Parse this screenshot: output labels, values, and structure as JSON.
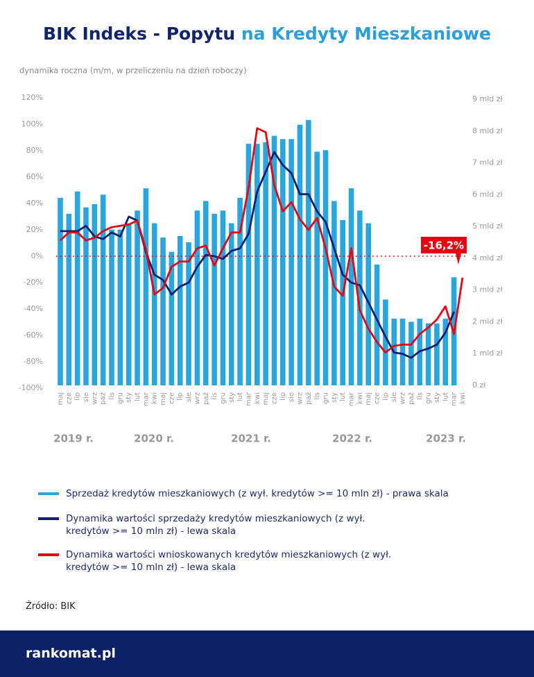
{
  "chart_data": {
    "type": "bar_line",
    "title": [
      "BIK Indeks - Popytu",
      "na Kredyty Mieszkaniowe"
    ],
    "title_colors": [
      "#12246b",
      "#2a9fd8"
    ],
    "subtitle": "dynamika roczna (m/m, w przeliczeniu na dzień roboczy)",
    "categories": [
      "maj",
      "cze",
      "lip",
      "sie",
      "wrz",
      "paź",
      "lis",
      "gru",
      "sty",
      "lut",
      "mar",
      "kwi",
      "maj",
      "cze",
      "lip",
      "sie",
      "wrz",
      "paź",
      "lis",
      "gru",
      "sty",
      "lut",
      "mar",
      "kwi",
      "maj",
      "cze",
      "lip",
      "sie",
      "wrz",
      "paź",
      "lis",
      "gru",
      "sty",
      "lut",
      "mar",
      "kwi",
      "maj",
      "cze",
      "lip",
      "sie",
      "wrz",
      "paź",
      "lis",
      "gru",
      "sty",
      "lut",
      "mar",
      "kwi"
    ],
    "year_labels": [
      "2019 r.",
      "2020 r.",
      "2021 r.",
      "2022 r.",
      "2023 r."
    ],
    "series": [
      {
        "name": "Sprzedaż kredytów mieszkaniowych (z wył. kredytów >= 10 mln zł) - prawa skala",
        "type": "bar",
        "axis": "y2",
        "color": "#29a6de",
        "values": [
          5.9,
          5.4,
          6.1,
          5.6,
          5.7,
          6.0,
          4.9,
          4.9,
          5.1,
          5.5,
          6.2,
          5.1,
          4.65,
          4.2,
          4.7,
          4.5,
          5.5,
          5.8,
          5.4,
          5.5,
          5.1,
          5.9,
          7.6,
          7.6,
          7.65,
          7.85,
          7.75,
          7.75,
          8.2,
          8.35,
          7.35,
          7.4,
          5.8,
          5.2,
          6.2,
          5.5,
          5.1,
          3.8,
          2.7,
          2.1,
          2.1,
          2.0,
          2.1,
          1.95,
          1.95,
          2.1,
          3.4,
          null
        ]
      },
      {
        "name": "Dynamika wartości sprzedaży kredytów mieszkaniowych (z wył. kredytów >= 10 mln zł) - lewa skala",
        "type": "line",
        "color": "#0d1f6e",
        "values": [
          19,
          19,
          19,
          23,
          15,
          13,
          18,
          15,
          30,
          27,
          3,
          -14,
          -18,
          -29,
          -23,
          -20,
          -8,
          1,
          0,
          -2,
          4,
          6,
          17,
          49,
          64,
          79,
          69,
          63,
          47,
          47,
          34,
          26,
          6,
          -14,
          -20,
          -22,
          -35,
          -48,
          -61,
          -73,
          -74,
          -77,
          -72,
          -70,
          -67,
          -58,
          -42,
          null
        ]
      },
      {
        "name": "Dynamika wartości wnioskowanych kredytów mieszkaniowych (z wył. kredytów >= 10 mln zł) - lewa skala",
        "type": "line",
        "color": "#e30613",
        "values": [
          12,
          18,
          18,
          12,
          14,
          19,
          22,
          23,
          24,
          27,
          5,
          -29,
          -24,
          -8,
          -4,
          -4,
          6,
          8,
          -7,
          6,
          18,
          18,
          52,
          97,
          94,
          54,
          34,
          41,
          28,
          20,
          29,
          6,
          -23,
          -30,
          6,
          -41,
          -55,
          -65,
          -73,
          -68,
          -67,
          -67,
          -59,
          -54,
          -48,
          -38,
          -59,
          -16.2
        ],
        "value_labels": [
          null,
          null,
          null,
          null,
          null,
          null,
          null,
          null,
          null,
          null,
          null,
          null,
          null,
          null,
          null,
          null,
          null,
          null,
          null,
          null,
          null,
          null,
          null,
          null,
          null,
          null,
          null,
          null,
          null,
          null,
          null,
          null,
          null,
          null,
          null,
          null,
          null,
          null,
          null,
          null,
          null,
          null,
          null,
          null,
          null,
          null,
          null,
          "-16,2%"
        ]
      }
    ],
    "ylim": [
      -100,
      120
    ],
    "yticks": [
      {
        "value": -100,
        "label": "-100%"
      },
      {
        "value": -80,
        "label": "-80%"
      },
      {
        "value": -60,
        "label": "-60%"
      },
      {
        "value": -40,
        "label": "-40%"
      },
      {
        "value": -20,
        "label": "-20%"
      },
      {
        "value": 0,
        "label": "0%"
      },
      {
        "value": 20,
        "label": "20%"
      },
      {
        "value": 40,
        "label": "40%"
      },
      {
        "value": 60,
        "label": "60%"
      },
      {
        "value": 80,
        "label": "80%"
      },
      {
        "value": 100,
        "label": "100%"
      },
      {
        "value": 120,
        "label": "120%"
      }
    ],
    "y2lim": [
      0,
      9
    ],
    "y2ticks": [
      {
        "value": 0,
        "label": "0 zł"
      },
      {
        "value": 1,
        "label": "1 mld zł"
      },
      {
        "value": 2,
        "label": "2 mld zł"
      },
      {
        "value": 3,
        "label": "3 mld zł"
      },
      {
        "value": 4,
        "label": "4 mld zł"
      },
      {
        "value": 5,
        "label": "5 mld zł"
      },
      {
        "value": 6,
        "label": "6 mld zł"
      },
      {
        "value": 7,
        "label": "7 mld zł"
      },
      {
        "value": 8,
        "label": "8 mld zł"
      },
      {
        "value": 9,
        "label": "9 mld zł"
      }
    ],
    "reference_line": {
      "value": 0,
      "color": "#e30613"
    },
    "source": "Źródło: BIK",
    "logo": "rankomat.pl"
  }
}
